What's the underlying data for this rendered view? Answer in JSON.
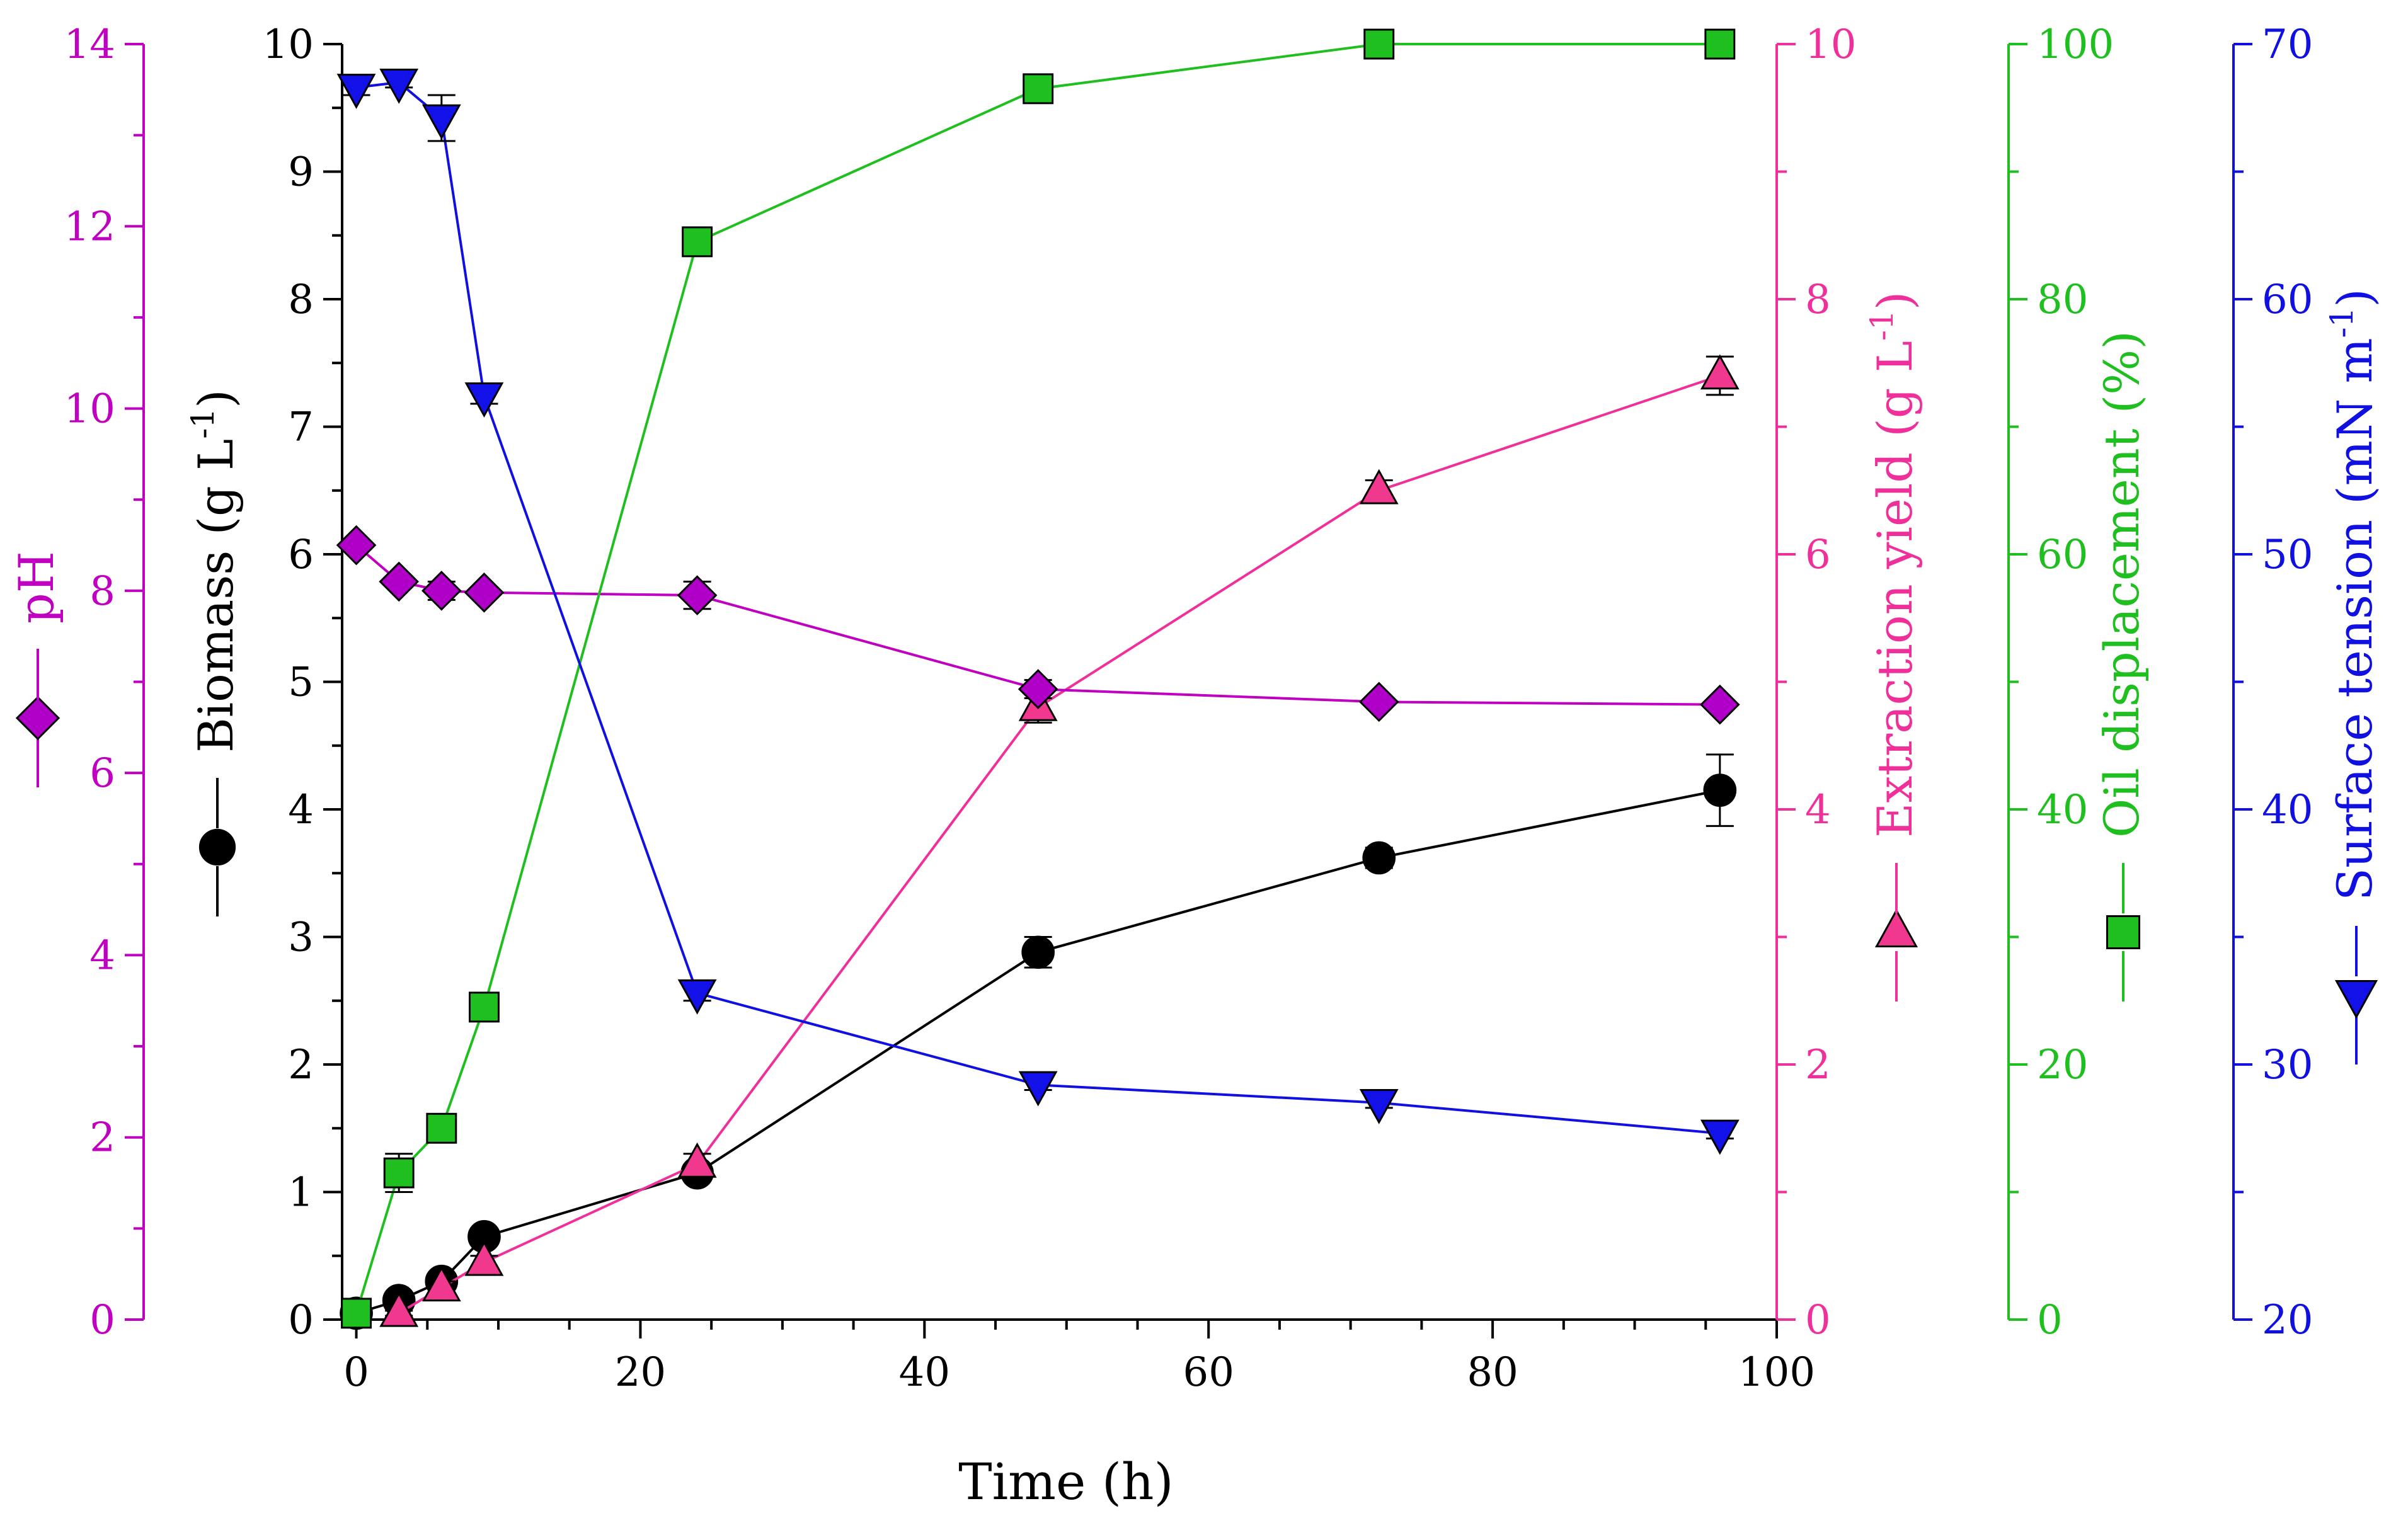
{
  "chart_data": {
    "type": "line",
    "xlabel": "Time (h)",
    "xlim": [
      -1,
      100
    ],
    "x_ticks": [
      0,
      20,
      40,
      60,
      80,
      100
    ],
    "axes": [
      {
        "id": "ph",
        "label": "pH",
        "color": "#c000c0",
        "side": "left",
        "ylim": [
          0,
          14
        ],
        "ticks": [
          0,
          2,
          4,
          6,
          8,
          10,
          12,
          14
        ]
      },
      {
        "id": "biomass",
        "label": "Biomass (g L-1)",
        "label_main": "Biomass (g L",
        "label_sup": "-1",
        "label_tail": ")",
        "color": "#000000",
        "side": "left",
        "ylim": [
          0,
          10
        ],
        "ticks": [
          0,
          1,
          2,
          3,
          4,
          5,
          6,
          7,
          8,
          9,
          10
        ]
      },
      {
        "id": "yield",
        "label": "Extraction yield (g L-1)",
        "label_main": "Extraction yield (g L",
        "label_sup": "-1",
        "label_tail": ")",
        "color": "#f0309a",
        "side": "right",
        "ylim": [
          0,
          10
        ],
        "ticks": [
          0,
          2,
          4,
          6,
          8,
          10
        ]
      },
      {
        "id": "oil",
        "label": "Oil displacement (%)",
        "label_main": "Oil displacement (%)",
        "color": "#1fbf1f",
        "side": "right",
        "ylim": [
          0,
          100
        ],
        "ticks": [
          0,
          20,
          40,
          60,
          80,
          100
        ]
      },
      {
        "id": "st",
        "label": "Surface tension (mN m-1)",
        "label_main": "Surface tension (mN m",
        "label_sup": "-1",
        "label_tail": ")",
        "color": "#1010e0",
        "side": "right",
        "ylim": [
          20,
          70
        ],
        "ticks": [
          20,
          30,
          40,
          50,
          60,
          70
        ]
      }
    ],
    "series": [
      {
        "name": "Biomass",
        "axis": "biomass",
        "marker": "circle",
        "color": "#000000",
        "fill": "#000000",
        "x": [
          0,
          3,
          6,
          9,
          24,
          48,
          72,
          96
        ],
        "values": [
          0.05,
          0.15,
          0.3,
          0.65,
          1.15,
          2.88,
          3.62,
          4.15
        ],
        "errors": [
          0.02,
          0.03,
          0.05,
          0.05,
          0.06,
          0.12,
          0.08,
          0.28
        ]
      },
      {
        "name": "Extraction yield",
        "axis": "yield",
        "marker": "triangle-up",
        "color": "#f0309a",
        "fill": "#f0388f",
        "x": [
          3,
          6,
          9,
          24,
          48,
          72,
          96
        ],
        "values": [
          0.05,
          0.25,
          0.45,
          1.22,
          4.8,
          6.5,
          7.4
        ],
        "errors": [
          0.02,
          0.05,
          0.05,
          0.08,
          0.12,
          0.08,
          0.15
        ]
      },
      {
        "name": "pH",
        "axis": "ph",
        "marker": "diamond",
        "color": "#c000c0",
        "fill": "#b000c8",
        "x": [
          0,
          3,
          6,
          9,
          24,
          48,
          72,
          96
        ],
        "values": [
          8.5,
          8.1,
          8.0,
          7.98,
          7.95,
          6.92,
          6.78,
          6.75
        ],
        "errors": [
          0.05,
          0.05,
          0.1,
          0.05,
          0.15,
          0.1,
          0.05,
          0.05
        ]
      },
      {
        "name": "Oil displacement",
        "axis": "oil",
        "marker": "square",
        "color": "#1fbf1f",
        "fill": "#1fbf1f",
        "x": [
          0,
          3,
          6,
          9,
          24,
          48,
          72,
          96
        ],
        "values": [
          0.5,
          11.5,
          15,
          24.5,
          84.5,
          96.5,
          100,
          100
        ],
        "errors": [
          0.5,
          1.5,
          1,
          1,
          1,
          1,
          0.5,
          0.5
        ]
      },
      {
        "name": "Surface tension",
        "axis": "st",
        "marker": "triangle-down",
        "color": "#1010e0",
        "fill": "#1212e8",
        "x": [
          0,
          3,
          6,
          9,
          24,
          48,
          72,
          96
        ],
        "values": [
          68.3,
          68.5,
          67.1,
          56.2,
          32.8,
          29.2,
          28.5,
          27.3
        ],
        "errors": [
          0.3,
          0.2,
          0.9,
          0.3,
          0.3,
          0.2,
          0.2,
          0.2
        ]
      }
    ]
  }
}
